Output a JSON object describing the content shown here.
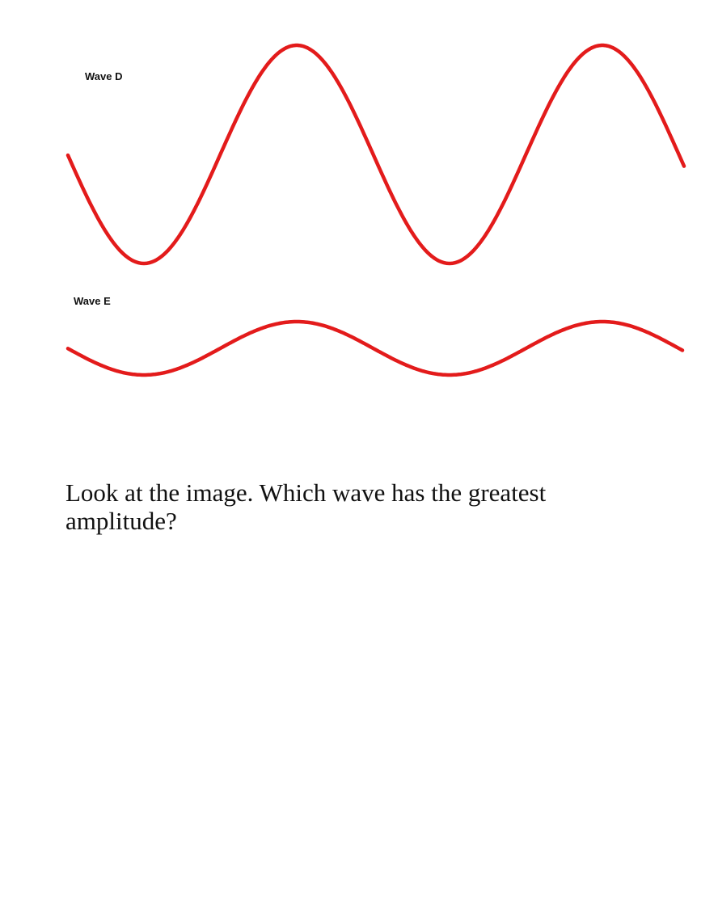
{
  "waves": [
    {
      "label": "Wave D",
      "color": "#e31b1b"
    },
    {
      "label": "Wave E",
      "color": "#e31b1b"
    }
  ],
  "question": "Look at the image. Which wave has the greatest amplitude?"
}
